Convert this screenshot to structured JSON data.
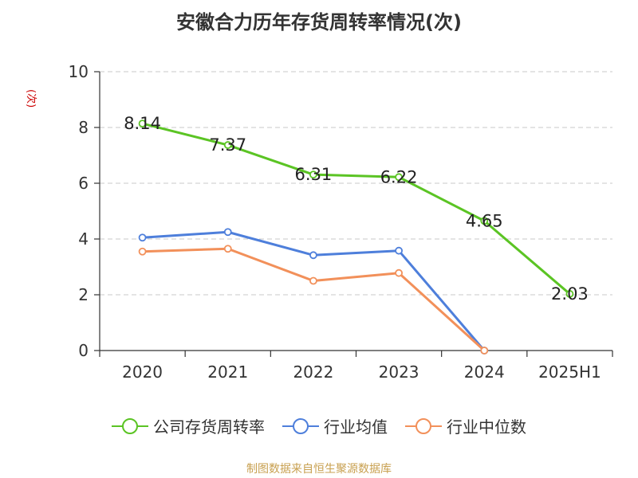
{
  "chart_data": {
    "type": "line",
    "title": "安徽合力历年存货周转率情况(次)",
    "ylabel": "(次)",
    "categories": [
      "2020",
      "2021",
      "2022",
      "2023",
      "2024",
      "2025H1"
    ],
    "ylim": [
      0,
      10
    ],
    "yticks": [
      0,
      2,
      4,
      6,
      8,
      10
    ],
    "grid": true,
    "legend_position": "bottom",
    "series": [
      {
        "name": "公司存货周转率",
        "color": "#5bc424",
        "values": [
          8.14,
          7.37,
          6.31,
          6.22,
          4.65,
          2.03
        ],
        "labels": [
          "8.14",
          "7.37",
          "6.31",
          "6.22",
          "4.65",
          "2.03"
        ]
      },
      {
        "name": "行业均值",
        "color": "#4e7fdb",
        "values": [
          4.05,
          4.25,
          3.42,
          3.58,
          0.0,
          null
        ]
      },
      {
        "name": "行业中位数",
        "color": "#f2905a",
        "values": [
          3.55,
          3.65,
          2.5,
          2.78,
          0.0,
          null
        ]
      }
    ]
  },
  "source": "制图数据来自恒生聚源数据库"
}
